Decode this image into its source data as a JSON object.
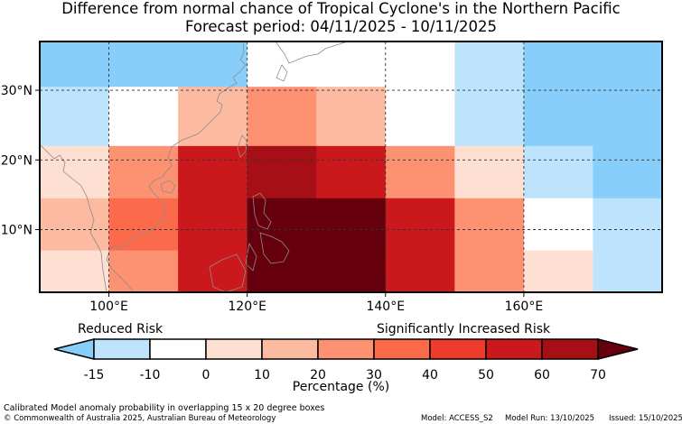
{
  "title_line1": "Difference from normal chance of Tropical Cyclone's in the Northern Pacific",
  "title_line2": "Forecast period: 04/11/2025 - 10/11/2025",
  "map": {
    "lon_range": [
      90,
      180
    ],
    "lat_range": [
      1,
      37
    ],
    "lon_ticks": [
      {
        "value": 100,
        "label": "100°E"
      },
      {
        "value": 120,
        "label": "120°E"
      },
      {
        "value": 140,
        "label": "140°E"
      },
      {
        "value": 160,
        "label": "160°E"
      }
    ],
    "lat_ticks": [
      {
        "value": 10,
        "label": "10°N"
      },
      {
        "value": 20,
        "label": "20°N"
      },
      {
        "value": 30,
        "label": "30°N"
      }
    ],
    "cells": [
      {
        "lon0": 90,
        "lon1": 100,
        "lat0": 30.5,
        "lat1": 37,
        "category": "b-15"
      },
      {
        "lon0": 100,
        "lon1": 110,
        "lat0": 30.5,
        "lat1": 37,
        "category": "b-15"
      },
      {
        "lon0": 110,
        "lon1": 120,
        "lat0": 30.5,
        "lat1": 37,
        "category": "b-15"
      },
      {
        "lon0": 120,
        "lon1": 130,
        "lat0": 30.5,
        "lat1": 37,
        "category": "b0"
      },
      {
        "lon0": 130,
        "lon1": 140,
        "lat0": 30.5,
        "lat1": 37,
        "category": "b0"
      },
      {
        "lon0": 140,
        "lon1": 150,
        "lat0": 30.5,
        "lat1": 37,
        "category": "b0"
      },
      {
        "lon0": 150,
        "lon1": 160,
        "lat0": 30.5,
        "lat1": 37,
        "category": "b-10"
      },
      {
        "lon0": 160,
        "lon1": 170,
        "lat0": 30.5,
        "lat1": 37,
        "category": "b-15"
      },
      {
        "lon0": 170,
        "lon1": 180,
        "lat0": 30.5,
        "lat1": 37,
        "category": "b-15"
      },
      {
        "lon0": 90,
        "lon1": 100,
        "lat0": 22,
        "lat1": 30.5,
        "category": "b-10"
      },
      {
        "lon0": 100,
        "lon1": 110,
        "lat0": 22,
        "lat1": 30.5,
        "category": "b0"
      },
      {
        "lon0": 110,
        "lon1": 120,
        "lat0": 22,
        "lat1": 30.5,
        "category": "b10"
      },
      {
        "lon0": 120,
        "lon1": 130,
        "lat0": 22,
        "lat1": 30.5,
        "category": "b20"
      },
      {
        "lon0": 130,
        "lon1": 140,
        "lat0": 22,
        "lat1": 30.5,
        "category": "b10"
      },
      {
        "lon0": 140,
        "lon1": 150,
        "lat0": 22,
        "lat1": 30.5,
        "category": "b0"
      },
      {
        "lon0": 150,
        "lon1": 160,
        "lat0": 22,
        "lat1": 30.5,
        "category": "b-10"
      },
      {
        "lon0": 160,
        "lon1": 170,
        "lat0": 22,
        "lat1": 30.5,
        "category": "b-15"
      },
      {
        "lon0": 170,
        "lon1": 180,
        "lat0": 22,
        "lat1": 30.5,
        "category": "b-15"
      },
      {
        "lon0": 90,
        "lon1": 100,
        "lat0": 14.5,
        "lat1": 22,
        "category": "b0p"
      },
      {
        "lon0": 100,
        "lon1": 110,
        "lat0": 14.5,
        "lat1": 22,
        "category": "b20"
      },
      {
        "lon0": 110,
        "lon1": 120,
        "lat0": 14.5,
        "lat1": 22,
        "category": "b50"
      },
      {
        "lon0": 120,
        "lon1": 130,
        "lat0": 14.5,
        "lat1": 22,
        "category": "b60"
      },
      {
        "lon0": 130,
        "lon1": 140,
        "lat0": 14.5,
        "lat1": 22,
        "category": "b50"
      },
      {
        "lon0": 140,
        "lon1": 150,
        "lat0": 14.5,
        "lat1": 22,
        "category": "b20"
      },
      {
        "lon0": 150,
        "lon1": 160,
        "lat0": 14.5,
        "lat1": 22,
        "category": "b0p"
      },
      {
        "lon0": 160,
        "lon1": 170,
        "lat0": 14.5,
        "lat1": 22,
        "category": "b-10"
      },
      {
        "lon0": 170,
        "lon1": 180,
        "lat0": 14.5,
        "lat1": 22,
        "category": "b-15"
      },
      {
        "lon0": 90,
        "lon1": 100,
        "lat0": 7,
        "lat1": 14.5,
        "category": "b10"
      },
      {
        "lon0": 100,
        "lon1": 110,
        "lat0": 7,
        "lat1": 14.5,
        "category": "b30"
      },
      {
        "lon0": 110,
        "lon1": 120,
        "lat0": 7,
        "lat1": 14.5,
        "category": "b50"
      },
      {
        "lon0": 120,
        "lon1": 130,
        "lat0": 7,
        "lat1": 14.5,
        "category": "b70"
      },
      {
        "lon0": 130,
        "lon1": 140,
        "lat0": 7,
        "lat1": 14.5,
        "category": "b70"
      },
      {
        "lon0": 140,
        "lon1": 150,
        "lat0": 7,
        "lat1": 14.5,
        "category": "b50"
      },
      {
        "lon0": 150,
        "lon1": 160,
        "lat0": 7,
        "lat1": 14.5,
        "category": "b20"
      },
      {
        "lon0": 160,
        "lon1": 170,
        "lat0": 7,
        "lat1": 14.5,
        "category": "b0"
      },
      {
        "lon0": 170,
        "lon1": 180,
        "lat0": 7,
        "lat1": 14.5,
        "category": "b-10"
      },
      {
        "lon0": 90,
        "lon1": 100,
        "lat0": 1,
        "lat1": 7,
        "category": "b0p"
      },
      {
        "lon0": 100,
        "lon1": 110,
        "lat0": 1,
        "lat1": 7,
        "category": "b20"
      },
      {
        "lon0": 110,
        "lon1": 120,
        "lat0": 1,
        "lat1": 7,
        "category": "b50"
      },
      {
        "lon0": 120,
        "lon1": 130,
        "lat0": 1,
        "lat1": 7,
        "category": "b70"
      },
      {
        "lon0": 130,
        "lon1": 140,
        "lat0": 1,
        "lat1": 7,
        "category": "b70"
      },
      {
        "lon0": 140,
        "lon1": 150,
        "lat0": 1,
        "lat1": 7,
        "category": "b50"
      },
      {
        "lon0": 150,
        "lon1": 160,
        "lat0": 1,
        "lat1": 7,
        "category": "b20"
      },
      {
        "lon0": 160,
        "lon1": 170,
        "lat0": 1,
        "lat1": 7,
        "category": "b0p"
      },
      {
        "lon0": 170,
        "lon1": 180,
        "lat0": 1,
        "lat1": 7,
        "category": "b-10"
      }
    ],
    "category_colors": {
      "b-15": "#87cefa",
      "b-10": "#bde4fc",
      "b0": "#ffffff",
      "b0p": "#fee0d2",
      "b10": "#fcbba1",
      "b20": "#fc9272",
      "b30": "#fb6a4a",
      "b50": "#cb181d",
      "b60": "#a50f15",
      "b70": "#67000d"
    }
  },
  "colorbar": {
    "label_left": "Reduced Risk",
    "label_right": "Significantly Increased Risk",
    "ticks": [
      "-15",
      "-10",
      "0",
      "10",
      "20",
      "30",
      "40",
      "50",
      "60",
      "70"
    ],
    "segments": [
      "#bde4fc",
      "#ffffff",
      "#fee0d2",
      "#fcbba1",
      "#fc9272",
      "#fb6a4a",
      "#ef3b2c",
      "#cb181d",
      "#a50f15"
    ],
    "under_color": "#87cefa",
    "over_color": "#67000d",
    "xlabel": "Percentage (%)"
  },
  "footer": {
    "line1": "Calibrated Model anomaly probability in overlapping 15 x 20 degree boxes",
    "line2": "© Commonwealth of Australia 2025, Australian Bureau of Meteorology",
    "model": "Model: ACCESS_S2",
    "model_run": "Model Run: 13/10/2025",
    "issued": "Issued: 15/10/2025"
  }
}
